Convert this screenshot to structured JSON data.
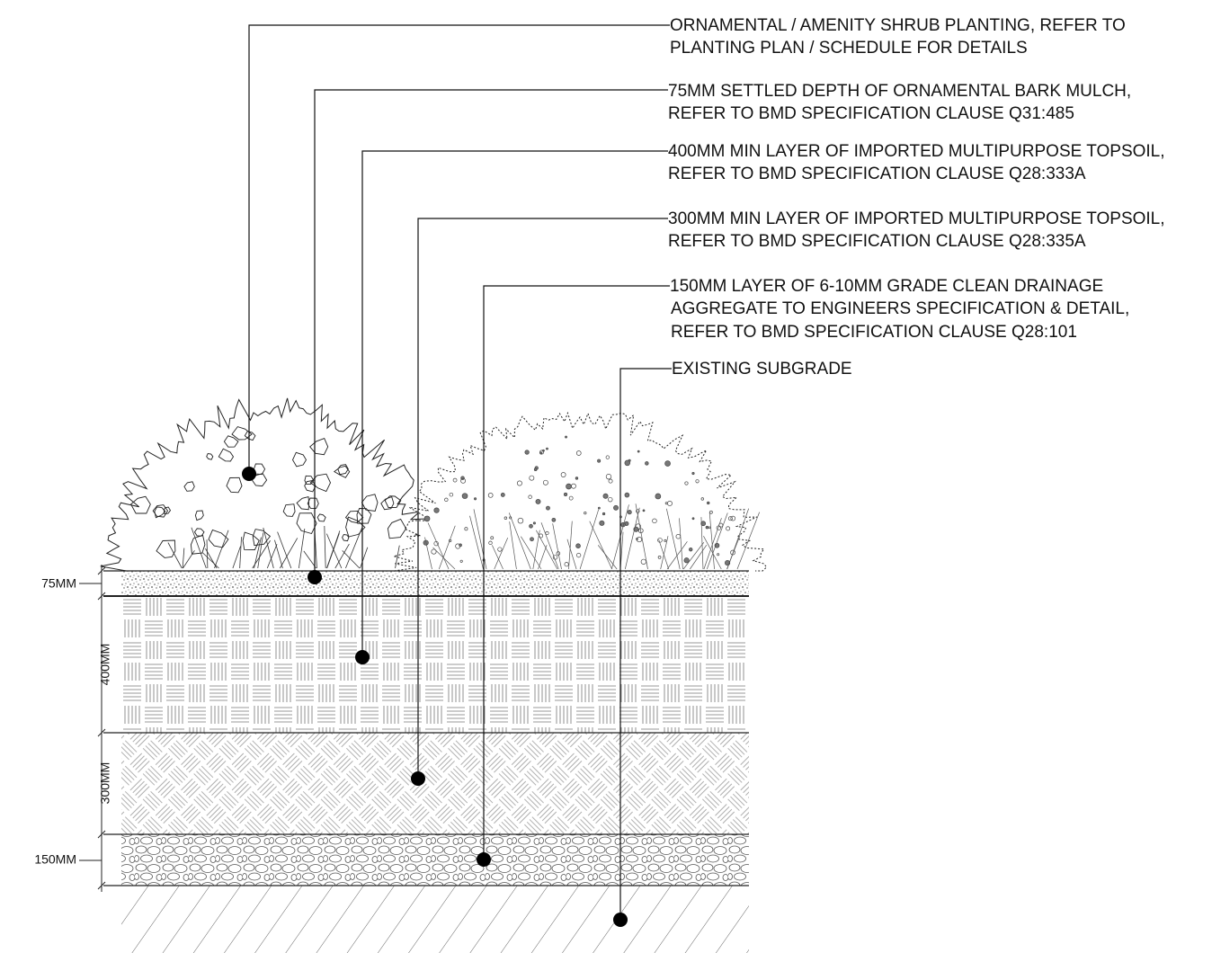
{
  "annotations": [
    {
      "lines": [
        "ORNAMENTAL / AMENITY SHRUB PLANTING, REFER TO",
        "PLANTING PLAN / SCHEDULE FOR DETAILS"
      ]
    },
    {
      "lines": [
        "75MM SETTLED DEPTH OF ORNAMENTAL BARK MULCH,",
        "REFER TO BMD SPECIFICATION CLAUSE Q31:485"
      ]
    },
    {
      "lines": [
        "400MM MIN LAYER OF IMPORTED MULTIPURPOSE TOPSOIL,",
        "REFER TO BMD SPECIFICATION CLAUSE Q28:333A"
      ]
    },
    {
      "lines": [
        "300MM MIN LAYER OF IMPORTED MULTIPURPOSE TOPSOIL,",
        "REFER TO BMD SPECIFICATION CLAUSE Q28:335A"
      ]
    },
    {
      "lines": [
        "150MM LAYER OF 6-10MM GRADE CLEAN DRAINAGE",
        "AGGREGATE TO ENGINEERS SPECIFICATION & DETAIL,",
        "REFER TO BMD SPECIFICATION CLAUSE Q28:101"
      ]
    },
    {
      "lines": [
        "EXISTING SUBGRADE"
      ]
    }
  ],
  "dimensions": [
    "75MM",
    "400MM",
    "300MM",
    "150MM"
  ]
}
